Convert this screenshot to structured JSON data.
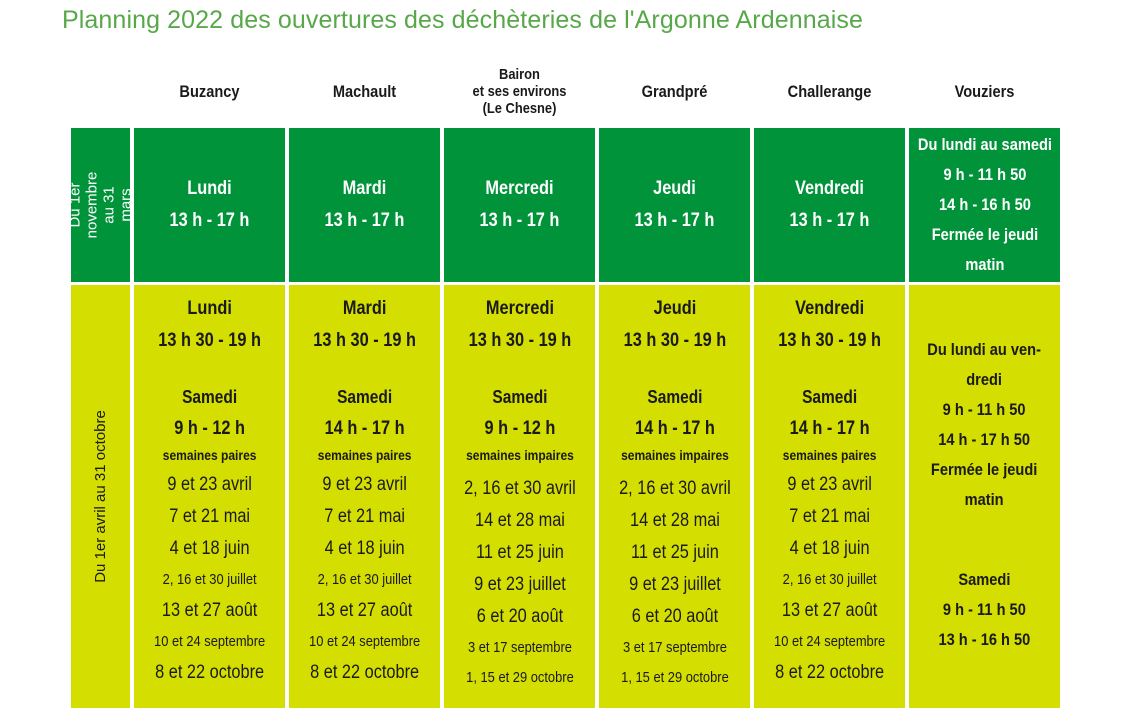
{
  "title": "Planning 2022 des ouvertures des déchèteries de l'Argonne Ardennaise",
  "colors": {
    "title": "#58a84a",
    "winter": "#00933a",
    "summer": "#d4de00"
  },
  "columns": [
    "Buzancy",
    "Machault",
    "Bairon\net ses environs\n(Le Chesne)",
    "Grandpré",
    "Challerange",
    "Vouziers"
  ],
  "rows": {
    "winter_label": "Du 1er novembre\nau 31 mars",
    "summer_label": "Du 1er avril au 31 octobre"
  },
  "winter": [
    {
      "day": "Lundi",
      "hours": "13 h - 17 h"
    },
    {
      "day": "Mardi",
      "hours": "13 h - 17 h"
    },
    {
      "day": "Mercredi",
      "hours": "13 h - 17 h"
    },
    {
      "day": "Jeudi",
      "hours": "13 h - 17 h"
    },
    {
      "day": "Vendredi",
      "hours": "13 h - 17 h"
    }
  ],
  "winter_vouziers": [
    "Du lundi au samedi",
    "9 h - 11 h 50",
    "14 h - 16 h 50",
    "Fermée le jeudi",
    "matin"
  ],
  "summer": [
    {
      "day": "Lundi",
      "hours": "13 h 30 - 19 h",
      "sat": "Samedi",
      "sat_hours": "9 h - 12 h",
      "weeks": "semaines paires",
      "dates": [
        "9 et 23 avril",
        "7 et 21 mai",
        "4 et 18 juin",
        "2, 16 et 30 juillet",
        "13 et 27 août",
        "10 et 24 septembre",
        "8 et 22 octobre"
      ]
    },
    {
      "day": "Mardi",
      "hours": "13 h 30 - 19 h",
      "sat": "Samedi",
      "sat_hours": "14 h - 17 h",
      "weeks": "semaines paires",
      "dates": [
        "9 et 23 avril",
        "7 et 21 mai",
        "4 et 18 juin",
        "2, 16 et 30 juillet",
        "13 et 27 août",
        "10 et 24 septembre",
        "8 et 22 octobre"
      ]
    },
    {
      "day": "Mercredi",
      "hours": "13 h 30 - 19 h",
      "sat": "Samedi",
      "sat_hours": "9 h - 12 h",
      "weeks": "semaines impaires",
      "dates": [
        "2, 16 et 30 avril",
        "14 et 28 mai",
        "11 et 25 juin",
        "9 et 23 juillet",
        "6 et 20 août",
        "3 et 17 septembre",
        "1, 15 et 29 octobre"
      ]
    },
    {
      "day": "Jeudi",
      "hours": "13 h 30 - 19 h",
      "sat": "Samedi",
      "sat_hours": "14 h - 17 h",
      "weeks": "semaines impaires",
      "dates": [
        "2, 16 et 30 avril",
        "14 et 28 mai",
        "11 et 25 juin",
        "9 et 23 juillet",
        "6 et 20 août",
        "3 et 17 septembre",
        "1, 15 et 29 octobre"
      ]
    },
    {
      "day": "Vendredi",
      "hours": "13 h 30 - 19 h",
      "sat": "Samedi",
      "sat_hours": "14 h - 17 h",
      "weeks": "semaines paires",
      "dates": [
        "9 et 23 avril",
        "7 et 21 mai",
        "4 et 18 juin",
        "2, 16 et 30 juillet",
        "13 et 27 août",
        "10 et 24 septembre",
        "8 et 22 octobre"
      ]
    }
  ],
  "summer_vouziers": {
    "weekdays": [
      "Du lundi au ven-",
      "dredi",
      "9 h - 11 h 50",
      "14 h - 17 h 50",
      "Fermée le jeudi",
      "matin"
    ],
    "saturday": [
      "Samedi",
      "9 h - 11 h 50",
      "13 h - 16 h 50"
    ]
  }
}
